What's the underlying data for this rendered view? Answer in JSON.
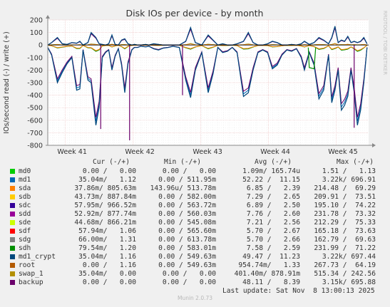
{
  "chart_data": {
    "type": "line",
    "title": "Disk IOs per device - by month",
    "ylabel": "IOs/second read (-) / write (+)",
    "watermark": "RRDTOOL / TOBI OETIKER",
    "ylim": [
      -800,
      200
    ],
    "yticks": [
      200,
      100,
      0,
      -100,
      -200,
      -300,
      -400,
      -500,
      -600,
      -700,
      -800
    ],
    "xticks": [
      "Week 41",
      "Week 42",
      "Week 43",
      "Week 44",
      "Week 45"
    ],
    "grid": true,
    "series": [
      {
        "name": "md0",
        "color": "#00cc00",
        "cur": "0.00 /   0.00",
        "min": "0.00 /   0.00",
        "avg": "1.09m/ 165.74u",
        "max": "1.51 /   1.13"
      },
      {
        "name": "md1",
        "color": "#0066b3",
        "cur": "35.04m/   1.12",
        "min": "0.00 / 511.95m",
        "avg": "52.22 /  11.15",
        "max": "3.22k/ 696.91"
      },
      {
        "name": "sda",
        "color": "#ff8000",
        "cur": "37.86m/ 805.63m",
        "min": "143.96u/ 513.78m",
        "avg": "6.85 /   2.39",
        "max": "214.48 /  69.29"
      },
      {
        "name": "sdb",
        "color": "#ffcc00",
        "cur": "43.73m/ 887.84m",
        "min": "0.00 / 582.00m",
        "avg": "7.29 /   2.65",
        "max": "209.91 /  73.51"
      },
      {
        "name": "sdc",
        "color": "#330099",
        "cur": "57.95m/ 966.52m",
        "min": "0.00 / 563.72m",
        "avg": "6.89 /   2.50",
        "max": "195.10 /  74.22"
      },
      {
        "name": "sdd",
        "color": "#990099",
        "cur": "52.92m/ 877.74m",
        "min": "0.00 / 560.03m",
        "avg": "7.76 /   2.60",
        "max": "231.78 /  73.32"
      },
      {
        "name": "sde",
        "color": "#ccff00",
        "cur": "44.68m/ 866.21m",
        "min": "0.00 / 545.08m",
        "avg": "7.21 /   2.56",
        "max": "212.29 /  75.33"
      },
      {
        "name": "sdf",
        "color": "#ff0000",
        "cur": "57.94m/   1.06",
        "min": "0.00 / 565.60m",
        "avg": "5.70 /   2.67",
        "max": "165.18 /  73.63"
      },
      {
        "name": "sdg",
        "color": "#808080",
        "cur": "66.00m/   1.31",
        "min": "0.00 / 613.78m",
        "avg": "5.70 /   2.66",
        "max": "162.79 /  69.63"
      },
      {
        "name": "sdh",
        "color": "#008f00",
        "cur": "79.54m/   1.20",
        "min": "0.00 / 583.01m",
        "avg": "7.58 /   2.59",
        "max": "231.99 /  71.22"
      },
      {
        "name": "md1_crypt",
        "color": "#00487d",
        "cur": "35.04m/   1.16",
        "min": "0.00 / 549.63m",
        "avg": "49.47 /  11.23",
        "max": "3.22k/ 697.44"
      },
      {
        "name": "root",
        "color": "#b35a00",
        "cur": "0.00 /   1.16",
        "min": "0.00 / 549.63m",
        "avg": "954.74m/   1.33",
        "max": "267.73 /  64.19"
      },
      {
        "name": "swap_1",
        "color": "#b38f00",
        "cur": "35.04m/   0.00",
        "min": "0.00 /   0.00",
        "avg": "401.40m/ 878.91m",
        "max": "515.34 / 242.56"
      },
      {
        "name": "backup",
        "color": "#6b006b",
        "cur": "0.00 /   0.00",
        "min": "0.00 /   0.00",
        "avg": "48.11 /   8.39",
        "max": "3.15k/ 695.88"
      }
    ],
    "main_trace": {
      "series": "md1_crypt",
      "x": [
        0,
        0.012,
        0.03,
        0.045,
        0.06,
        0.075,
        0.09,
        0.1,
        0.11,
        0.125,
        0.135,
        0.15,
        0.16,
        0.17,
        0.18,
        0.19,
        0.2,
        0.21,
        0.22,
        0.23,
        0.24,
        0.25,
        0.262,
        0.27,
        0.28,
        0.29,
        0.305,
        0.315,
        0.33,
        0.345,
        0.36,
        0.375,
        0.39,
        0.41,
        0.43,
        0.445,
        0.46,
        0.48,
        0.5,
        0.515,
        0.53,
        0.545,
        0.56,
        0.575,
        0.59,
        0.61,
        0.625,
        0.64,
        0.655,
        0.67,
        0.685,
        0.7,
        0.715,
        0.73,
        0.745,
        0.76,
        0.775,
        0.79,
        0.8,
        0.815,
        0.83,
        0.845,
        0.86,
        0.875,
        0.885,
        0.895,
        0.905,
        0.915,
        0.925,
        0.935,
        0.945,
        0.955,
        0.965,
        0.975,
        0.985,
        0.995
      ],
      "read": [
        -20,
        -80,
        -300,
        -220,
        -150,
        -100,
        -360,
        -350,
        -40,
        -280,
        -300,
        -640,
        -500,
        -100,
        -60,
        -40,
        -200,
        -90,
        -30,
        -160,
        -380,
        -150,
        -40,
        -20,
        -20,
        -10,
        -15,
        -10,
        -30,
        -40,
        -25,
        -20,
        -10,
        -20,
        -280,
        -420,
        -200,
        -60,
        -380,
        -230,
        -20,
        -60,
        -50,
        -20,
        -60,
        -410,
        -380,
        -200,
        -60,
        -40,
        -60,
        -190,
        -160,
        -80,
        -40,
        -50,
        -30,
        -100,
        -200,
        -60,
        -160,
        -430,
        -360,
        -80,
        -460,
        -360,
        -200,
        -520,
        -480,
        -410,
        -200,
        -380,
        -640,
        -520,
        -300,
        -20
      ],
      "write": [
        0,
        20,
        60,
        10,
        5,
        20,
        15,
        30,
        0,
        20,
        100,
        60,
        10,
        5,
        0,
        10,
        80,
        5,
        0,
        40,
        50,
        10,
        0,
        5,
        0,
        0,
        5,
        0,
        10,
        5,
        0,
        0,
        0,
        0,
        30,
        140,
        20,
        0,
        80,
        40,
        0,
        10,
        0,
        0,
        10,
        30,
        100,
        20,
        0,
        0,
        10,
        30,
        20,
        0,
        0,
        5,
        0,
        10,
        30,
        5,
        20,
        60,
        40,
        10,
        60,
        150,
        20,
        40,
        30,
        70,
        20,
        30,
        20,
        30,
        60,
        10
      ]
    },
    "spikes": [
      {
        "x": 0.42,
        "read": -400
      },
      {
        "x": 0.255,
        "read": -760
      },
      {
        "x": 0.955,
        "read": -660
      },
      {
        "x": 0.165,
        "read": -670
      }
    ],
    "footer": {
      "last_update": "Last update: Sat Nov  8 13:00:13 2025",
      "munin": "Munin 2.0.73"
    },
    "legend_headers": {
      "cur": "Cur (-/+)",
      "min": "Min (-/+)",
      "avg": "Avg (-/+)",
      "max": "Max (-/+)"
    }
  }
}
